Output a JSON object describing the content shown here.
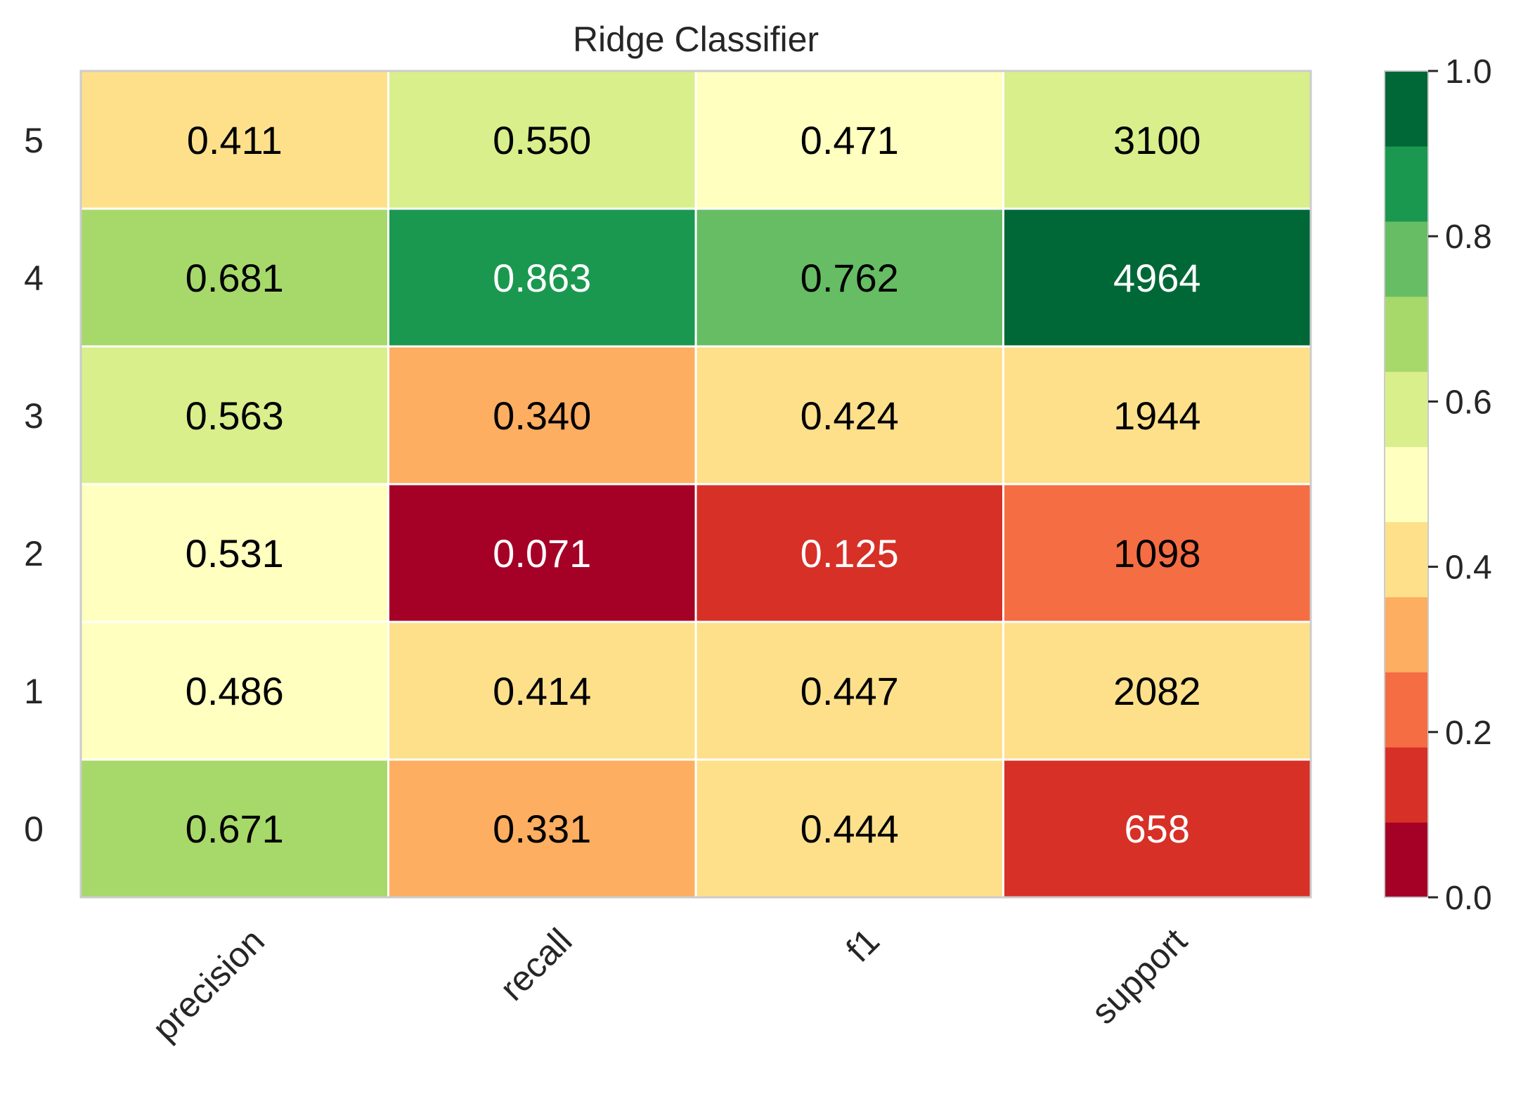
{
  "chart_data": {
    "type": "heatmap",
    "title": "Ridge Classifier",
    "xlabel": "",
    "ylabel": "",
    "x_categories": [
      "precision",
      "recall",
      "f1",
      "support"
    ],
    "y_categories": [
      "5",
      "4",
      "3",
      "2",
      "1",
      "0"
    ],
    "rows": [
      {
        "label": "5",
        "values": [
          0.411,
          0.55,
          0.471
        ],
        "support": 3100,
        "labels": [
          "0.411",
          "0.550",
          "0.471",
          "3100"
        ]
      },
      {
        "label": "4",
        "values": [
          0.681,
          0.863,
          0.762
        ],
        "support": 4964,
        "labels": [
          "0.681",
          "0.863",
          "0.762",
          "4964"
        ]
      },
      {
        "label": "3",
        "values": [
          0.563,
          0.34,
          0.424
        ],
        "support": 1944,
        "labels": [
          "0.563",
          "0.340",
          "0.424",
          "1944"
        ]
      },
      {
        "label": "2",
        "values": [
          0.531,
          0.071,
          0.125
        ],
        "support": 1098,
        "labels": [
          "0.531",
          "0.071",
          "0.125",
          "1098"
        ]
      },
      {
        "label": "1",
        "values": [
          0.486,
          0.414,
          0.447
        ],
        "support": 2082,
        "labels": [
          "0.486",
          "0.414",
          "0.447",
          "2082"
        ]
      },
      {
        "label": "0",
        "values": [
          0.671,
          0.331,
          0.444
        ],
        "support": 658,
        "labels": [
          "0.671",
          "0.331",
          "0.444",
          "658"
        ]
      }
    ],
    "colorbar": {
      "range": [
        0.0,
        1.0
      ],
      "ticks": [
        "0.0",
        "0.2",
        "0.4",
        "0.6",
        "0.8",
        "1.0"
      ],
      "colors": [
        "#a50026",
        "#d73027",
        "#f46d43",
        "#fdae61",
        "#fee08b",
        "#ffffbf",
        "#d9ef8b",
        "#a6d96a",
        "#66bd63",
        "#1a9850",
        "#006837"
      ]
    },
    "grid": false,
    "legend": "colorbar-right"
  }
}
